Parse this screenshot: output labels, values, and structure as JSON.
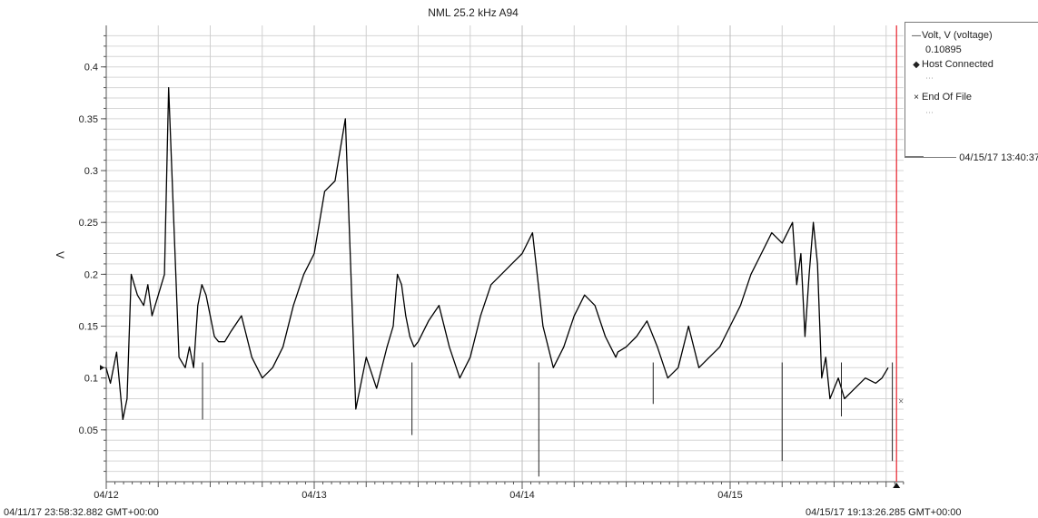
{
  "chart_data": {
    "type": "line",
    "title": "NML 25.2  kHz  A94",
    "ylabel": "V",
    "xlabel": "",
    "ylim": [
      0,
      0.44
    ],
    "yticks": [
      0.05,
      0.1,
      0.15,
      0.2,
      0.25,
      0.3,
      0.35,
      0.4
    ],
    "ytick_labels": [
      "0.05",
      "0.1",
      "0.15",
      "0.2",
      "0.25",
      "0.3",
      "0.35",
      "0.4"
    ],
    "xlim": [
      "04/11/17 23:58:32",
      "04/15/17 19:13:26"
    ],
    "xtick_labels": [
      "04/12",
      "04/13",
      "04/14",
      "04/15"
    ],
    "start_label": "04/11/17 23:58:32.882 GMT+00:00",
    "end_label": "04/15/17 19:13:26.285 GMT+00:00",
    "cursor_day": 3.8,
    "grid": true,
    "series": [
      {
        "name": "Volt, V (voltage)",
        "color": "#000000",
        "x_unit": "days since 04/12 00:00",
        "x": [
          -0.001,
          0.02,
          0.05,
          0.08,
          0.1,
          0.12,
          0.15,
          0.18,
          0.2,
          0.22,
          0.25,
          0.28,
          0.3,
          0.35,
          0.38,
          0.4,
          0.42,
          0.44,
          0.46,
          0.48,
          0.5,
          0.52,
          0.54,
          0.57,
          0.6,
          0.65,
          0.7,
          0.75,
          0.8,
          0.85,
          0.9,
          0.95,
          1.0,
          1.05,
          1.1,
          1.15,
          1.2,
          1.25,
          1.3,
          1.35,
          1.38,
          1.4,
          1.42,
          1.44,
          1.46,
          1.48,
          1.5,
          1.55,
          1.6,
          1.65,
          1.7,
          1.75,
          1.8,
          1.85,
          1.9,
          1.95,
          2.0,
          2.05,
          2.1,
          2.15,
          2.2,
          2.25,
          2.3,
          2.35,
          2.4,
          2.45,
          2.46,
          2.5,
          2.55,
          2.6,
          2.65,
          2.7,
          2.75,
          2.8,
          2.85,
          2.9,
          2.95,
          3.0,
          3.05,
          3.1,
          3.15,
          3.2,
          3.25,
          3.3,
          3.32,
          3.34,
          3.36,
          3.38,
          3.4,
          3.42,
          3.44,
          3.46,
          3.48,
          3.5,
          3.52,
          3.55,
          3.6,
          3.65,
          3.7,
          3.73,
          3.76
        ],
        "y": [
          0.11,
          0.095,
          0.125,
          0.06,
          0.08,
          0.2,
          0.18,
          0.17,
          0.19,
          0.16,
          0.18,
          0.2,
          0.38,
          0.12,
          0.11,
          0.13,
          0.11,
          0.17,
          0.19,
          0.18,
          0.16,
          0.14,
          0.135,
          0.135,
          0.145,
          0.16,
          0.12,
          0.1,
          0.11,
          0.13,
          0.17,
          0.2,
          0.22,
          0.28,
          0.29,
          0.35,
          0.07,
          0.12,
          0.09,
          0.13,
          0.15,
          0.2,
          0.19,
          0.16,
          0.14,
          0.13,
          0.135,
          0.155,
          0.17,
          0.13,
          0.1,
          0.12,
          0.16,
          0.19,
          0.2,
          0.21,
          0.22,
          0.24,
          0.15,
          0.11,
          0.13,
          0.16,
          0.18,
          0.17,
          0.14,
          0.12,
          0.125,
          0.13,
          0.14,
          0.155,
          0.13,
          0.1,
          0.11,
          0.15,
          0.11,
          0.12,
          0.13,
          0.15,
          0.17,
          0.2,
          0.22,
          0.24,
          0.23,
          0.25,
          0.19,
          0.22,
          0.14,
          0.2,
          0.25,
          0.21,
          0.1,
          0.12,
          0.08,
          0.09,
          0.1,
          0.08,
          0.09,
          0.1,
          0.095,
          0.1,
          0.11
        ]
      }
    ],
    "spikes": [
      {
        "x": 0.463,
        "y": 0.06
      },
      {
        "x": 1.47,
        "y": 0.045
      },
      {
        "x": 2.08,
        "y": 0.005
      },
      {
        "x": 2.63,
        "y": 0.075
      },
      {
        "x": 3.25,
        "y": 0.02
      },
      {
        "x": 3.535,
        "y": 0.063
      },
      {
        "x": 3.78,
        "y": 0.02
      }
    ],
    "legend": {
      "series_label": "Volt, V (voltage)",
      "series_value": "0.10895",
      "host_label": "Host Connected",
      "end_label": "End Of File",
      "timestamp": "04/15/17 13:40:37"
    }
  }
}
